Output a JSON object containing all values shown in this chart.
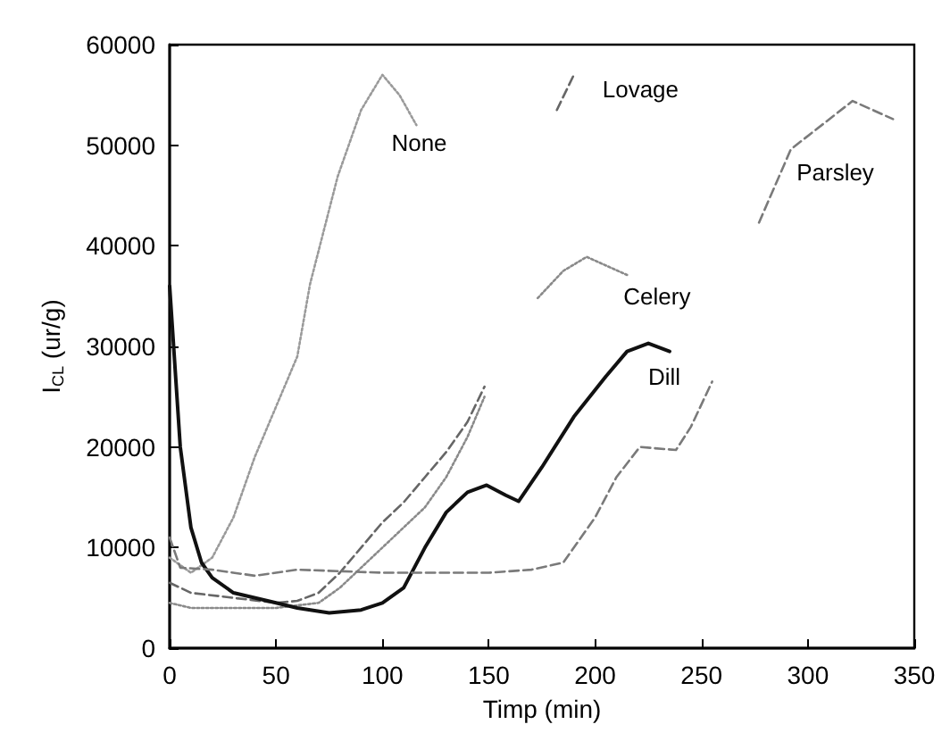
{
  "chart_data": {
    "type": "line",
    "xlabel": "Timp (min)",
    "ylabel": "I$_{CL}$ (ur/g)",
    "xlim": [
      0,
      350
    ],
    "xticks": [
      0,
      50,
      100,
      150,
      200,
      250,
      300,
      350
    ],
    "ylim": [
      0,
      60000
    ],
    "yticks": [
      0,
      10000,
      20000,
      30000,
      40000,
      50000,
      60000
    ],
    "grid": false,
    "legend": false,
    "marker": "none",
    "series": [
      {
        "name": "None",
        "color": "#9a9a9a",
        "line_style": "dotted",
        "x": [
          0,
          10,
          20,
          30,
          40,
          50,
          60,
          66,
          79,
          90,
          100,
          108,
          116
        ],
        "values": [
          9000,
          7500,
          9000,
          13000,
          19000,
          24000,
          29000,
          36200,
          46900,
          53500,
          57000,
          55000,
          52000
        ]
      },
      {
        "name": "Lovage",
        "color": "#666666",
        "line_style": "dashed",
        "x": [
          0,
          10,
          30,
          50,
          60,
          70,
          80,
          90,
          100,
          110,
          120,
          130,
          140,
          148,
          160,
          182,
          190
        ],
        "values": [
          6500,
          5500,
          5000,
          4500,
          4700,
          5500,
          7500,
          10000,
          12500,
          14500,
          17000,
          19500,
          22500,
          26000,
          null,
          53500,
          57000
        ]
      },
      {
        "name": "Celery",
        "color": "#8a8a8a",
        "line_style": "dotted",
        "x": [
          0,
          10,
          30,
          50,
          70,
          80,
          90,
          100,
          110,
          120,
          130,
          140,
          148,
          160,
          173,
          185,
          196,
          215
        ],
        "values": [
          4500,
          4000,
          4000,
          4000,
          4500,
          6000,
          8000,
          10000,
          12000,
          14000,
          17000,
          21000,
          25000,
          null,
          34800,
          37500,
          38900,
          37100
        ]
      },
      {
        "name": "Dill",
        "color": "#111111",
        "line_style": "solid",
        "x": [
          0,
          5,
          10,
          15,
          20,
          30,
          50,
          60,
          75,
          90,
          100,
          110,
          120,
          130,
          140,
          149,
          158,
          164,
          175,
          190,
          205,
          215,
          225,
          235
        ],
        "values": [
          36000,
          20000,
          12000,
          8500,
          7000,
          5500,
          4500,
          4000,
          3500,
          3800,
          4500,
          6000,
          10000,
          13500,
          15500,
          16200,
          15200,
          14600,
          18000,
          23000,
          27000,
          29500,
          30300,
          29500
        ]
      },
      {
        "name": "Parsley",
        "color": "#7a7a7a",
        "line_style": "dashed",
        "x": [
          0,
          5,
          20,
          40,
          60,
          100,
          150,
          170,
          185,
          200,
          210,
          221,
          238,
          245,
          255,
          265,
          277,
          292,
          321,
          340
        ],
        "values": [
          11000,
          8000,
          7800,
          7200,
          7800,
          7500,
          7500,
          7800,
          8500,
          13000,
          17000,
          20000,
          19700,
          22000,
          26500,
          null,
          42300,
          49600,
          54400,
          52600
        ]
      }
    ]
  }
}
